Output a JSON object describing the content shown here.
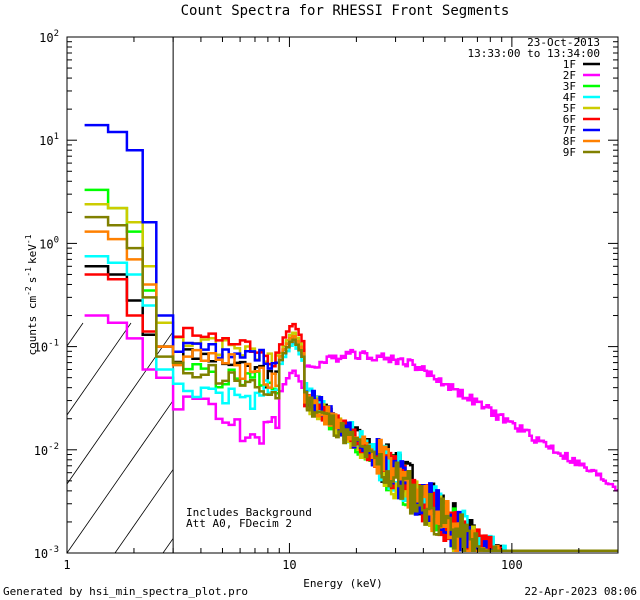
{
  "chart_data": {
    "type": "line",
    "title": "Count Spectra for RHESSI Front Segments",
    "xlabel": "Energy (keV)",
    "ylabel": "counts cm",
    "ylabel_units": {
      "exp1": "-2",
      "s": "s",
      "exp2": "-1",
      "kev": "keV",
      "exp3": "-1"
    },
    "xscale": "log",
    "yscale": "log",
    "xlim": [
      1,
      300
    ],
    "ylim": [
      0.001,
      100
    ],
    "x_ticks": [
      {
        "value": 1,
        "label": "1"
      },
      {
        "value": 10,
        "label": "10"
      },
      {
        "value": 100,
        "label": "100"
      }
    ],
    "y_ticks": [
      {
        "value": 0.001,
        "base": "10",
        "exp": "-3"
      },
      {
        "value": 0.01,
        "base": "10",
        "exp": "-2"
      },
      {
        "value": 0.1,
        "base": "10",
        "exp": "-1"
      },
      {
        "value": 1,
        "base": "10",
        "exp": "0"
      },
      {
        "value": 10,
        "base": "10",
        "exp": "1"
      },
      {
        "value": 100,
        "base": "10",
        "exp": "2"
      }
    ],
    "date": "23-Oct-2013",
    "time_range": "13:33:00 to 13:34:00",
    "annotation_line1": "Includes Background",
    "annotation_line2": "Att A0, FDecim 2",
    "hatch_region_keV": [
      1,
      3
    ],
    "footer_left": "Generated by hsi_min_spectra_plot.pro",
    "footer_right": "22-Apr-2023 08:06",
    "series": [
      {
        "name": "1F",
        "color": "#000000",
        "low": [
          0.6,
          0.5,
          0.28,
          0.13,
          0.1
        ],
        "plateau": [
          0.08,
          0.07,
          0.06,
          0.05
        ],
        "peak": 0.13,
        "tail0": 0.035,
        "slope": 1.9,
        "noise": 0.5
      },
      {
        "name": "2F",
        "color": "#ff00ff",
        "low": [
          0.2,
          0.17,
          0.12,
          0.06,
          0.05
        ],
        "plateau": [
          0.03,
          0.02,
          0.012,
          0.02
        ],
        "peak": 0.06,
        "tail0": 0.06,
        "slope": 1.3,
        "noise": 0.08
      },
      {
        "name": "3F",
        "color": "#00ff00",
        "low": [
          3.3,
          2.2,
          1.3,
          0.35,
          0.1
        ],
        "plateau": [
          0.06,
          0.05,
          0.05,
          0.04
        ],
        "peak": 0.14,
        "tail0": 0.03,
        "slope": 1.9,
        "noise": 0.5
      },
      {
        "name": "4F",
        "color": "#00ffff",
        "low": [
          0.75,
          0.65,
          0.5,
          0.25,
          0.06
        ],
        "plateau": [
          0.04,
          0.035,
          0.03,
          0.04
        ],
        "peak": 0.11,
        "tail0": 0.035,
        "slope": 1.9,
        "noise": 0.5
      },
      {
        "name": "5F",
        "color": "#cccc00",
        "low": [
          2.4,
          2.2,
          1.6,
          0.6,
          0.17
        ],
        "plateau": [
          0.12,
          0.1,
          0.09,
          0.08
        ],
        "peak": 0.14,
        "tail0": 0.03,
        "slope": 1.9,
        "noise": 0.5
      },
      {
        "name": "6F",
        "color": "#ff0000",
        "low": [
          0.5,
          0.45,
          0.2,
          0.14,
          0.1
        ],
        "plateau": [
          0.13,
          0.11,
          0.1,
          0.08
        ],
        "peak": 0.17,
        "tail0": 0.032,
        "slope": 1.9,
        "noise": 0.5
      },
      {
        "name": "7F",
        "color": "#0000ff",
        "low": [
          14,
          12,
          8,
          1.6,
          0.2
        ],
        "plateau": [
          0.1,
          0.09,
          0.08,
          0.06
        ],
        "peak": 0.12,
        "tail0": 0.033,
        "slope": 1.9,
        "noise": 0.5
      },
      {
        "name": "8F",
        "color": "#ff8000",
        "low": [
          1.3,
          1.1,
          0.7,
          0.4,
          0.1
        ],
        "plateau": [
          0.08,
          0.07,
          0.06,
          0.05
        ],
        "peak": 0.13,
        "tail0": 0.032,
        "slope": 1.9,
        "noise": 0.5
      },
      {
        "name": "9F",
        "color": "#808000",
        "low": [
          1.8,
          1.5,
          0.9,
          0.3,
          0.08
        ],
        "plateau": [
          0.06,
          0.05,
          0.04,
          0.035
        ],
        "peak": 0.12,
        "tail0": 0.03,
        "slope": 1.9,
        "noise": 0.5
      }
    ]
  }
}
